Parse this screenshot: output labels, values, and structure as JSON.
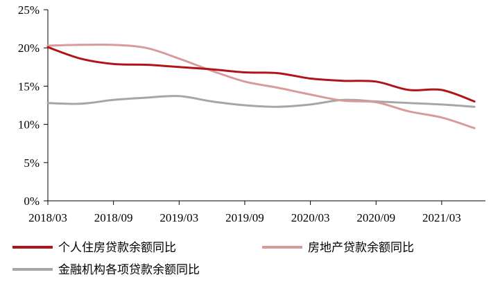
{
  "chart_data": {
    "type": "line",
    "title": "",
    "xlabel": "",
    "ylabel": "",
    "ylim": [
      0,
      25
    ],
    "xlim": [
      0,
      40
    ],
    "yticks": [
      0,
      5,
      10,
      15,
      20,
      25
    ],
    "ytick_labels": [
      "0%",
      "5%",
      "10%",
      "15%",
      "20%",
      "25%"
    ],
    "xticks": [
      0,
      6,
      12,
      18,
      24,
      30,
      36
    ],
    "xtick_labels": [
      "2018/03",
      "2018/09",
      "2019/03",
      "2019/09",
      "2020/03",
      "2020/09",
      "2021/03"
    ],
    "grid": false,
    "legend_position": "bottom",
    "series": [
      {
        "name": "个人住房贷款余额同比",
        "color": "#b01419",
        "x": [
          0,
          3,
          6,
          9,
          12,
          15,
          18,
          21,
          24,
          27,
          30,
          33,
          36,
          39
        ],
        "values": [
          20.1,
          18.6,
          17.9,
          17.8,
          17.5,
          17.2,
          16.8,
          16.7,
          16.0,
          15.7,
          15.6,
          14.5,
          14.5,
          13.0
        ]
      },
      {
        "name": "房地产贷款余额同比",
        "color": "#d99a9a",
        "x": [
          0,
          3,
          6,
          9,
          12,
          15,
          18,
          21,
          24,
          27,
          30,
          33,
          36,
          39
        ],
        "values": [
          20.3,
          20.4,
          20.4,
          20.0,
          18.6,
          17.0,
          15.6,
          14.8,
          13.9,
          13.1,
          12.9,
          11.7,
          10.9,
          9.5
        ]
      },
      {
        "name": "金融机构各项贷款余额同比",
        "color": "#a6a6a6",
        "x": [
          0,
          3,
          6,
          9,
          12,
          15,
          18,
          21,
          24,
          27,
          30,
          33,
          36,
          39
        ],
        "values": [
          12.8,
          12.7,
          13.2,
          13.5,
          13.7,
          13.0,
          12.5,
          12.3,
          12.6,
          13.2,
          13.0,
          12.8,
          12.6,
          12.3
        ]
      }
    ]
  }
}
